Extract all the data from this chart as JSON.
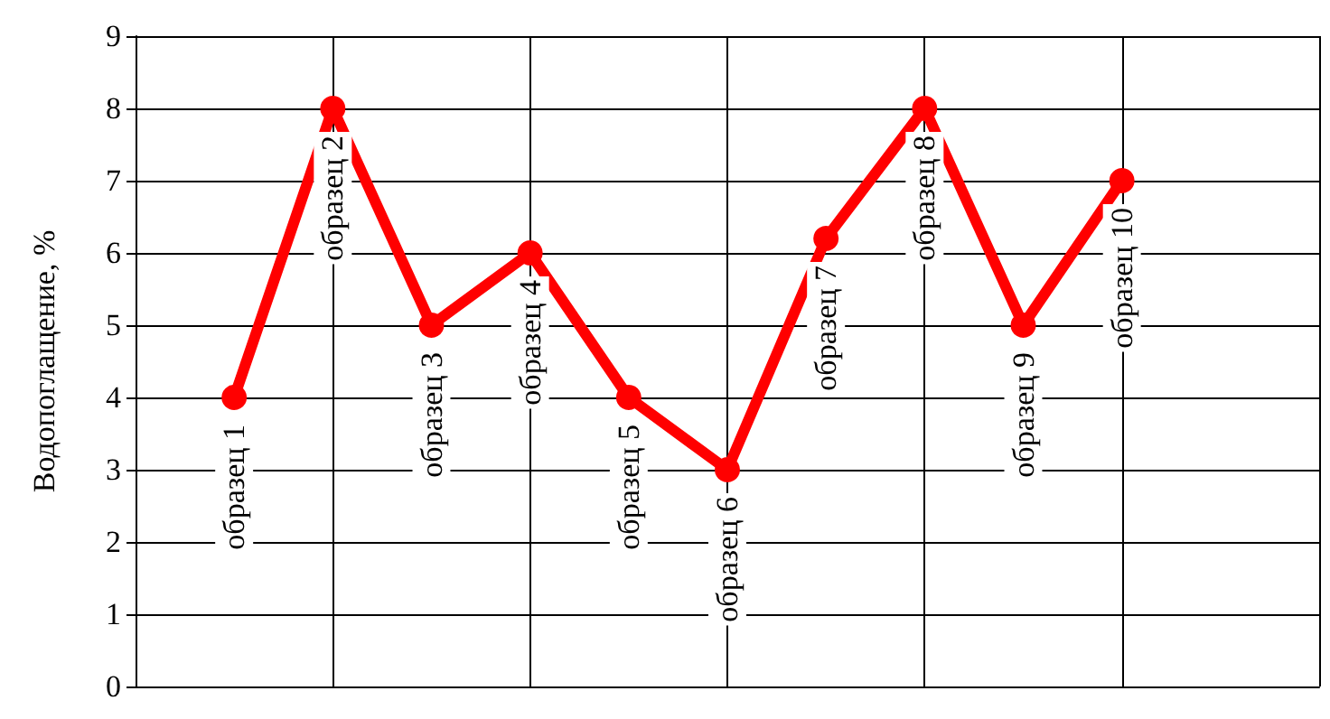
{
  "chart_data": {
    "type": "line",
    "ylabel": "Водопоглащение, %",
    "categories": [
      "образец 1",
      "образец 2",
      "образец 3",
      "образец 4",
      "образец 5",
      "образец 6",
      "образец 7",
      "образец 8",
      "образец 9",
      "образец 10"
    ],
    "series": [
      {
        "color": "#ff0000",
        "values": [
          4,
          8,
          5,
          6,
          4,
          3,
          6.2,
          8,
          5,
          7
        ]
      }
    ],
    "ylim": [
      0,
      9
    ],
    "yticks": [
      0,
      1,
      2,
      3,
      4,
      5,
      6,
      7,
      8,
      9
    ],
    "grid": true,
    "marker": "circle",
    "line_style": "solid",
    "tick_labels": "y"
  }
}
